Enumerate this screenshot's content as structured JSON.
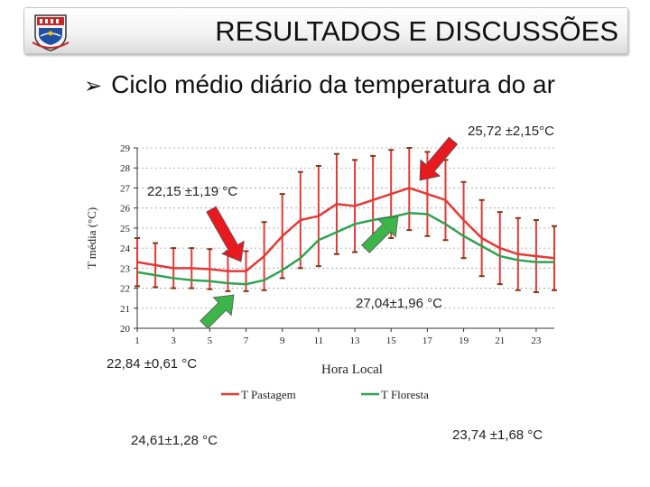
{
  "slide": {
    "title": "RESULTADOS E DISCUSSÕES",
    "subtitle": "Ciclo médio diário da temperatura do ar",
    "bullet_icon": "arrow-bullet-icon",
    "logo_icon": "university-crest-icon"
  },
  "annotations": {
    "pasture_max": "25,72 ±2,15°C",
    "pasture_min": "22,15 ±1,19 °C",
    "forest_max": "27,04±1,96 °C",
    "forest_min": "22,84 ±0,61 °C",
    "left_bottom": "24,61±1,28 °C",
    "right_bottom": "23,74 ±1,68 °C"
  },
  "colors": {
    "pasture": "#e53935",
    "forest": "#2ea44f",
    "arrow_red": "#e8191f",
    "arrow_green": "#3cb54a"
  },
  "chart_data": {
    "type": "line",
    "xlabel": "Hora Local",
    "ylabel": "T média (°C)",
    "xlim": [
      1,
      24
    ],
    "ylim": [
      20,
      29
    ],
    "x_ticks": [
      1,
      3,
      5,
      7,
      9,
      11,
      13,
      15,
      17,
      19,
      21,
      23
    ],
    "y_ticks": [
      20,
      21,
      22,
      23,
      24,
      25,
      26,
      27,
      28,
      29
    ],
    "legend_position": "bottom",
    "x": [
      1,
      2,
      3,
      4,
      5,
      6,
      7,
      8,
      9,
      10,
      11,
      12,
      13,
      14,
      15,
      16,
      17,
      18,
      19,
      20,
      21,
      22,
      23,
      24
    ],
    "series": [
      {
        "name": "T Pastagem",
        "values": [
          23.3,
          23.15,
          23.0,
          23.0,
          22.95,
          22.85,
          22.85,
          23.6,
          24.6,
          25.4,
          25.6,
          26.2,
          26.1,
          26.4,
          26.7,
          27.0,
          26.7,
          26.4,
          25.4,
          24.5,
          24.0,
          23.7,
          23.6,
          23.5
        ],
        "error": [
          1.2,
          1.1,
          1.0,
          1.0,
          1.0,
          1.0,
          1.0,
          1.7,
          2.1,
          2.4,
          2.5,
          2.5,
          2.3,
          2.2,
          2.2,
          2.1,
          2.1,
          2.0,
          1.9,
          1.9,
          1.8,
          1.8,
          1.8,
          1.6
        ]
      },
      {
        "name": "T Floresta",
        "values": [
          22.8,
          22.65,
          22.5,
          22.4,
          22.35,
          22.25,
          22.2,
          22.4,
          22.9,
          23.5,
          24.4,
          24.8,
          25.2,
          25.4,
          25.55,
          25.75,
          25.7,
          25.2,
          24.6,
          24.1,
          23.6,
          23.4,
          23.3,
          23.3
        ]
      }
    ]
  }
}
